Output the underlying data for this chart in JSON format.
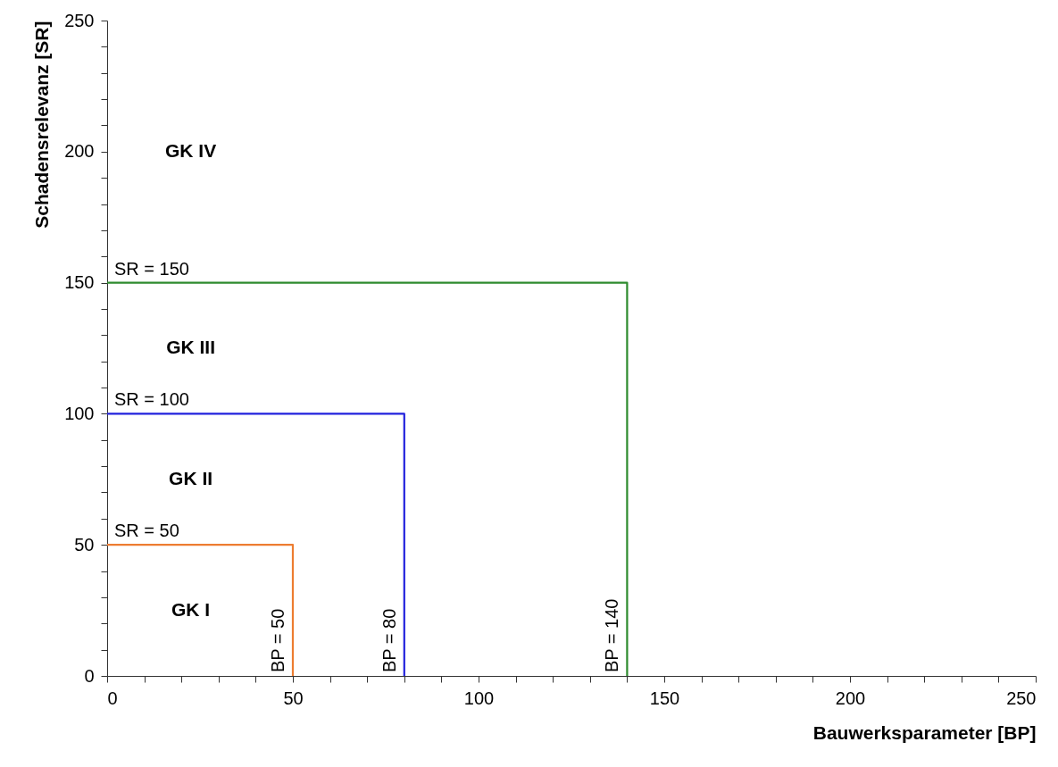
{
  "chart_data": {
    "type": "line",
    "xlabel": "Bauwerksparameter [BP]",
    "ylabel": "Schadensrelevanz [SR]",
    "series": [
      {
        "color": "#ed7d31",
        "x": [
          0,
          50,
          50
        ],
        "values": [
          50,
          50,
          0
        ]
      },
      {
        "color": "#2222dd",
        "x": [
          0,
          80,
          80
        ],
        "values": [
          100,
          100,
          0
        ]
      },
      {
        "color": "#2e8b2e",
        "x": [
          0,
          140,
          140
        ],
        "values": [
          150,
          150,
          0
        ]
      }
    ],
    "xlim": [
      0,
      250
    ],
    "ylim": [
      0,
      250
    ],
    "xticks": [
      0,
      {
        "value": 10,
        "label": null
      },
      {
        "value": 20,
        "label": null
      },
      {
        "value": 30,
        "label": null
      },
      {
        "value": 40,
        "label": null
      },
      50,
      {
        "value": 60,
        "label": null
      },
      {
        "value": 70,
        "label": null
      },
      {
        "value": 80,
        "label": null
      },
      {
        "value": 90,
        "label": null
      },
      100,
      {
        "value": 110,
        "label": null
      },
      {
        "value": 120,
        "label": null
      },
      {
        "value": 130,
        "label": null
      },
      {
        "value": 140,
        "label": null
      },
      150,
      {
        "value": 160,
        "label": null
      },
      {
        "value": 170,
        "label": null
      },
      {
        "value": 180,
        "label": null
      },
      {
        "value": 190,
        "label": null
      },
      200,
      {
        "value": 210,
        "label": null
      },
      {
        "value": 220,
        "label": null
      },
      {
        "value": 230,
        "label": null
      },
      {
        "value": 240,
        "label": null
      },
      250
    ],
    "yticks": [
      0,
      {
        "value": 10,
        "label": null
      },
      {
        "value": 20,
        "label": null
      },
      {
        "value": 30,
        "label": null
      },
      {
        "value": 40,
        "label": null
      },
      50,
      {
        "value": 60,
        "label": null
      },
      {
        "value": 70,
        "label": null
      },
      {
        "value": 80,
        "label": null
      },
      {
        "value": 90,
        "label": null
      },
      100,
      {
        "value": 110,
        "label": null
      },
      {
        "value": 120,
        "label": null
      },
      {
        "value": 130,
        "label": null
      },
      {
        "value": 140,
        "label": null
      },
      150,
      {
        "value": 160,
        "label": null
      },
      {
        "value": 170,
        "label": null
      },
      {
        "value": 180,
        "label": null
      },
      {
        "value": 190,
        "label": null
      },
      200,
      {
        "value": 210,
        "label": null
      },
      {
        "value": 220,
        "label": null
      },
      {
        "value": 230,
        "label": null
      },
      {
        "value": 240,
        "label": null
      },
      250
    ],
    "annotations": [
      {
        "text": "SR = 50",
        "x": 0,
        "y": 50
      },
      {
        "text": "SR = 100",
        "x": 0,
        "y": 100
      },
      {
        "text": "SR = 150",
        "x": 0,
        "y": 150
      },
      {
        "text": "BP = 50",
        "x": 50,
        "y": 0
      },
      {
        "text": "BP = 80",
        "x": 80,
        "y": 0
      },
      {
        "text": "BP = 140",
        "x": 140,
        "y": 0
      },
      "GK I",
      "GK II",
      "GK III",
      "GK IV"
    ],
    "grid": false,
    "marker": "none",
    "line_style": "solid"
  }
}
